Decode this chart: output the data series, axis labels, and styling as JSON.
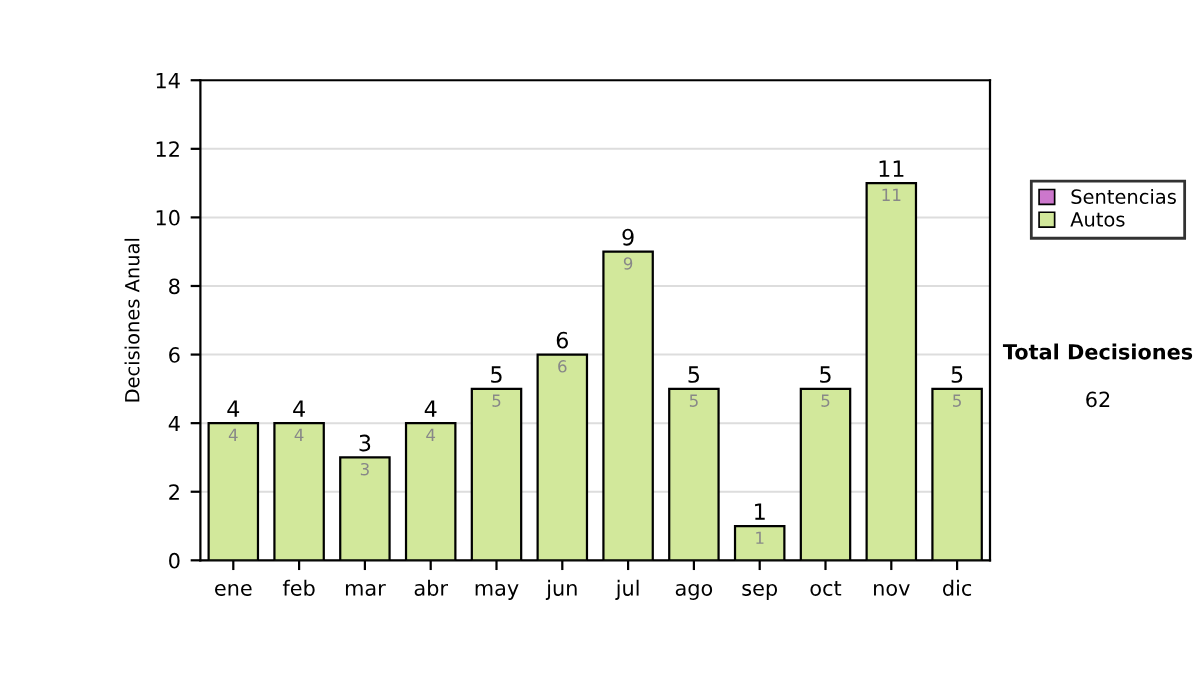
{
  "chart_data": {
    "type": "bar",
    "ylabel": "Decisiones Anual",
    "categories": [
      "ene",
      "feb",
      "mar",
      "abr",
      "may",
      "jun",
      "jul",
      "ago",
      "sep",
      "oct",
      "nov",
      "dic"
    ],
    "stacked": true,
    "series": [
      {
        "name": "Autos",
        "color": "#d2e89b",
        "values": [
          4,
          4,
          3,
          4,
          5,
          6,
          9,
          5,
          1,
          5,
          11,
          5
        ],
        "value_labels": [
          "4",
          "4",
          "3",
          "4",
          "5",
          "6",
          "9",
          "5",
          "1",
          "5",
          "11",
          "5"
        ]
      },
      {
        "name": "Sentencias",
        "color": "#cc77cc",
        "values": [
          0,
          0,
          0,
          0,
          0,
          0,
          0,
          0,
          0,
          0,
          0,
          0
        ]
      }
    ],
    "totals": [
      "4",
      "4",
      "3",
      "4",
      "5",
      "6",
      "9",
      "5",
      "1",
      "5",
      "11",
      "5"
    ],
    "ylim": [
      0,
      14
    ],
    "yticks": [
      0,
      2,
      4,
      6,
      8,
      10,
      12,
      14
    ],
    "grid": "y",
    "legend": "right",
    "annotations": [
      "Total Decisiones",
      "62"
    ]
  }
}
